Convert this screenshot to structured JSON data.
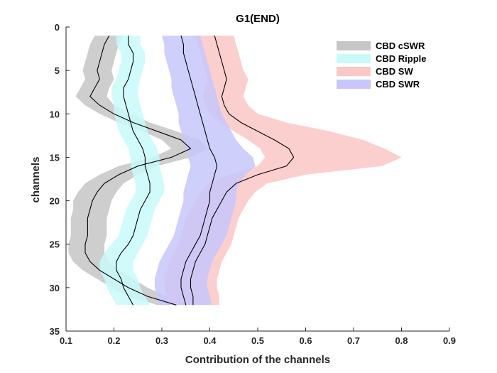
{
  "chart_data": {
    "type": "area",
    "title": "G1(END)",
    "xlabel": "Contribution of the channels",
    "ylabel": "channels",
    "xlim": [
      0.1,
      0.9
    ],
    "ylim": [
      0,
      35
    ],
    "y_reversed": true,
    "grid": false,
    "legend_position": "top-right",
    "x_ticks": [
      "0.1",
      "0.2",
      "0.3",
      "0.4",
      "0.5",
      "0.6",
      "0.7",
      "0.8",
      "0.9"
    ],
    "y_ticks": [
      "0",
      "5",
      "10",
      "15",
      "20",
      "25",
      "30",
      "35"
    ],
    "channels": [
      1,
      2,
      3,
      4,
      5,
      6,
      7,
      8,
      9,
      10,
      11,
      12,
      13,
      14,
      15,
      16,
      17,
      18,
      19,
      20,
      21,
      22,
      23,
      24,
      25,
      26,
      27,
      28,
      29,
      30,
      31,
      32
    ],
    "series": [
      {
        "name": "CBD cSWR",
        "color": "#c6c6c6",
        "mean": [
          0.19,
          0.18,
          0.175,
          0.17,
          0.165,
          0.17,
          0.16,
          0.15,
          0.17,
          0.2,
          0.24,
          0.29,
          0.34,
          0.36,
          0.32,
          0.25,
          0.21,
          0.18,
          0.165,
          0.155,
          0.15,
          0.145,
          0.145,
          0.145,
          0.14,
          0.14,
          0.15,
          0.17,
          0.2,
          0.23,
          0.27,
          0.33
        ],
        "lower": [
          0.16,
          0.15,
          0.145,
          0.14,
          0.135,
          0.14,
          0.13,
          0.12,
          0.14,
          0.17,
          0.21,
          0.26,
          0.3,
          0.32,
          0.28,
          0.21,
          0.17,
          0.14,
          0.125,
          0.115,
          0.115,
          0.11,
          0.11,
          0.11,
          0.105,
          0.105,
          0.115,
          0.135,
          0.165,
          0.195,
          0.23,
          0.29
        ],
        "upper": [
          0.22,
          0.21,
          0.205,
          0.2,
          0.195,
          0.2,
          0.19,
          0.185,
          0.2,
          0.235,
          0.275,
          0.33,
          0.38,
          0.395,
          0.36,
          0.29,
          0.25,
          0.22,
          0.205,
          0.195,
          0.19,
          0.185,
          0.185,
          0.185,
          0.18,
          0.18,
          0.19,
          0.21,
          0.24,
          0.27,
          0.31,
          0.36
        ]
      },
      {
        "name": "CBD Ripple",
        "color": "#c9fafa",
        "mean": [
          0.23,
          0.23,
          0.24,
          0.24,
          0.235,
          0.23,
          0.22,
          0.22,
          0.225,
          0.23,
          0.235,
          0.24,
          0.25,
          0.26,
          0.265,
          0.265,
          0.27,
          0.275,
          0.275,
          0.265,
          0.255,
          0.25,
          0.245,
          0.24,
          0.23,
          0.215,
          0.205,
          0.205,
          0.215,
          0.22,
          0.23,
          0.24
        ],
        "lower": [
          0.205,
          0.205,
          0.215,
          0.215,
          0.21,
          0.205,
          0.195,
          0.195,
          0.2,
          0.2,
          0.205,
          0.21,
          0.22,
          0.23,
          0.235,
          0.235,
          0.24,
          0.245,
          0.245,
          0.235,
          0.225,
          0.22,
          0.215,
          0.21,
          0.195,
          0.18,
          0.17,
          0.17,
          0.18,
          0.185,
          0.195,
          0.205
        ],
        "upper": [
          0.255,
          0.255,
          0.265,
          0.265,
          0.26,
          0.255,
          0.25,
          0.25,
          0.255,
          0.26,
          0.265,
          0.27,
          0.28,
          0.29,
          0.295,
          0.295,
          0.3,
          0.305,
          0.305,
          0.295,
          0.285,
          0.28,
          0.275,
          0.27,
          0.26,
          0.25,
          0.24,
          0.24,
          0.25,
          0.255,
          0.265,
          0.275
        ]
      },
      {
        "name": "CBD SW",
        "color": "#fbc7c7",
        "mean": [
          0.41,
          0.415,
          0.42,
          0.425,
          0.43,
          0.435,
          0.43,
          0.425,
          0.43,
          0.44,
          0.465,
          0.5,
          0.535,
          0.565,
          0.575,
          0.56,
          0.5,
          0.455,
          0.435,
          0.425,
          0.415,
          0.405,
          0.4,
          0.395,
          0.39,
          0.38,
          0.37,
          0.365,
          0.36,
          0.36,
          0.365,
          0.365
        ],
        "lower": [
          0.37,
          0.375,
          0.38,
          0.385,
          0.39,
          0.395,
          0.39,
          0.385,
          0.39,
          0.4,
          0.42,
          0.45,
          0.48,
          0.505,
          0.515,
          0.5,
          0.44,
          0.4,
          0.38,
          0.37,
          0.36,
          0.35,
          0.345,
          0.34,
          0.335,
          0.325,
          0.315,
          0.31,
          0.305,
          0.305,
          0.31,
          0.31
        ],
        "upper": [
          0.45,
          0.455,
          0.46,
          0.465,
          0.47,
          0.48,
          0.475,
          0.47,
          0.48,
          0.5,
          0.56,
          0.65,
          0.72,
          0.765,
          0.8,
          0.76,
          0.6,
          0.52,
          0.495,
          0.48,
          0.47,
          0.46,
          0.455,
          0.45,
          0.445,
          0.435,
          0.425,
          0.42,
          0.415,
          0.415,
          0.42,
          0.42
        ]
      },
      {
        "name": "CBD SWR",
        "color": "#c7c7fb",
        "mean": [
          0.34,
          0.345,
          0.345,
          0.35,
          0.355,
          0.36,
          0.365,
          0.37,
          0.375,
          0.38,
          0.385,
          0.39,
          0.395,
          0.4,
          0.41,
          0.415,
          0.41,
          0.405,
          0.4,
          0.4,
          0.395,
          0.39,
          0.385,
          0.38,
          0.37,
          0.36,
          0.35,
          0.345,
          0.34,
          0.34,
          0.345,
          0.35
        ],
        "lower": [
          0.3,
          0.305,
          0.305,
          0.31,
          0.315,
          0.32,
          0.32,
          0.325,
          0.33,
          0.335,
          0.335,
          0.34,
          0.345,
          0.35,
          0.355,
          0.36,
          0.355,
          0.35,
          0.345,
          0.345,
          0.34,
          0.335,
          0.33,
          0.325,
          0.315,
          0.305,
          0.295,
          0.29,
          0.285,
          0.285,
          0.29,
          0.295
        ],
        "upper": [
          0.38,
          0.385,
          0.39,
          0.395,
          0.4,
          0.405,
          0.41,
          0.415,
          0.42,
          0.425,
          0.435,
          0.445,
          0.455,
          0.47,
          0.49,
          0.495,
          0.475,
          0.46,
          0.455,
          0.455,
          0.45,
          0.445,
          0.44,
          0.435,
          0.425,
          0.415,
          0.405,
          0.4,
          0.395,
          0.395,
          0.4,
          0.405
        ]
      }
    ]
  }
}
